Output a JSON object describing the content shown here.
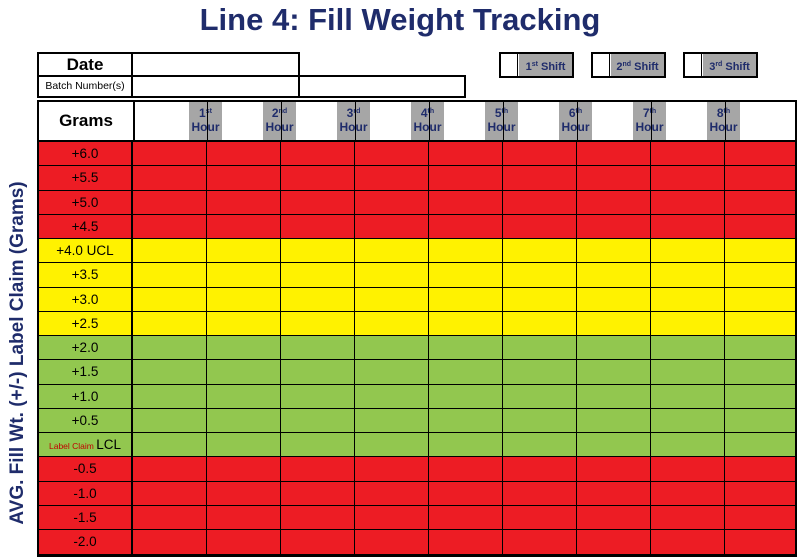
{
  "title": "Line 4: Fill Weight Tracking",
  "side_label": "AVG. Fill Wt. (+/-) Label Claim (Grams)",
  "header": {
    "date_label": "Date",
    "batch_label": "Batch Number(s)",
    "grams_label": "Grams"
  },
  "shifts": [
    {
      "num": "1",
      "sup": "st",
      "word": "Shift"
    },
    {
      "num": "2",
      "sup": "nd",
      "word": "Shift"
    },
    {
      "num": "3",
      "sup": "rd",
      "word": "Shift"
    }
  ],
  "hours": [
    {
      "num": "1",
      "sup": "st",
      "word": "Hour"
    },
    {
      "num": "2",
      "sup": "nd",
      "word": "Hour"
    },
    {
      "num": "3",
      "sup": "rd",
      "word": "Hour"
    },
    {
      "num": "4",
      "sup": "th",
      "word": "Hour"
    },
    {
      "num": "5",
      "sup": "th",
      "word": "Hour"
    },
    {
      "num": "6",
      "sup": "th",
      "word": "Hour"
    },
    {
      "num": "7",
      "sup": "th",
      "word": "Hour"
    },
    {
      "num": "8",
      "sup": "th",
      "word": "Hour"
    }
  ],
  "rows": [
    {
      "label": "+6.0",
      "zone": "red"
    },
    {
      "label": "+5.5",
      "zone": "red"
    },
    {
      "label": "+5.0",
      "zone": "red"
    },
    {
      "label": "+4.5",
      "zone": "red"
    },
    {
      "label": "+4.0 UCL",
      "zone": "yellow"
    },
    {
      "label": "+3.5",
      "zone": "yellow"
    },
    {
      "label": "+3.0",
      "zone": "yellow"
    },
    {
      "label": "+2.5",
      "zone": "yellow"
    },
    {
      "label": "+2.0",
      "zone": "green"
    },
    {
      "label": "+1.5",
      "zone": "green"
    },
    {
      "label": "+1.0",
      "zone": "green"
    },
    {
      "label": "+0.5",
      "zone": "green"
    },
    {
      "label": "LCL",
      "small": "Label Claim",
      "zone": "green"
    },
    {
      "label": "-0.5",
      "zone": "red"
    },
    {
      "label": "-1.0",
      "zone": "red"
    },
    {
      "label": "-1.5",
      "zone": "red"
    },
    {
      "label": "-2.0",
      "zone": "red"
    }
  ],
  "colors": {
    "red": "#ed1c24",
    "yellow": "#fff200",
    "green": "#92c74f",
    "title": "#1f2c6b"
  }
}
